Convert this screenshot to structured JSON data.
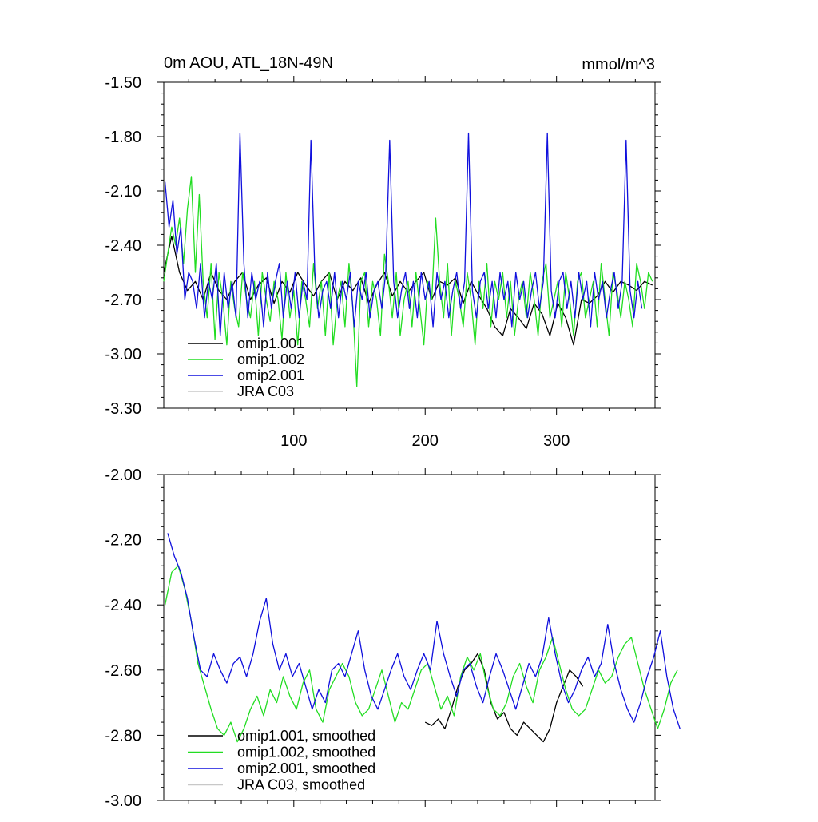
{
  "chart_data": [
    {
      "type": "line",
      "title": "0m AOU, ATL_18N-49N",
      "units": "mmol/m^3",
      "xlabel": "",
      "ylabel": "",
      "xlim": [
        1,
        375
      ],
      "ylim": [
        -3.3,
        -1.5
      ],
      "yticks": [
        "-1.50",
        "-1.80",
        "-2.10",
        "-2.40",
        "-2.70",
        "-3.00",
        "-3.30"
      ],
      "xticks": [
        "100",
        "200",
        "300"
      ],
      "legend_position": "lower-left",
      "legend": [
        "omip1.001",
        "omip1.002",
        "omip2.001",
        "JRA C03"
      ],
      "colors": {
        "omip1.001": "#000000",
        "omip1.002": "#22dd22",
        "omip2.001": "#1010dd",
        "JRA C03": "#c8c8c8"
      },
      "series": [
        {
          "name": "omip1.001",
          "x_start": 1,
          "x_step": 6,
          "values": [
            -2.55,
            -2.35,
            -2.55,
            -2.65,
            -2.6,
            -2.7,
            -2.55,
            -2.65,
            -2.7,
            -2.6,
            -2.55,
            -2.7,
            -2.62,
            -2.58,
            -2.72,
            -2.6,
            -2.66,
            -2.55,
            -2.62,
            -2.68,
            -2.6,
            -2.55,
            -2.7,
            -2.6,
            -2.65,
            -2.58,
            -2.72,
            -2.62,
            -2.55,
            -2.68,
            -2.6,
            -2.66,
            -2.6,
            -2.55,
            -2.7,
            -2.6,
            -2.62,
            -2.58,
            -2.72,
            -2.6,
            -2.68,
            -2.75,
            -2.85,
            -2.9,
            -2.75,
            -2.8,
            -2.86,
            -2.72,
            -2.78,
            -2.9,
            -2.72,
            -2.8,
            -2.95,
            -2.7,
            -2.72,
            -2.68,
            -2.6,
            -2.66,
            -2.6,
            -2.62,
            -2.65,
            -2.6,
            -2.62
          ]
        },
        {
          "name": "omip1.002",
          "x_start": 1,
          "x_step": 3,
          "values": [
            -2.6,
            -2.45,
            -2.3,
            -2.4,
            -2.25,
            -2.5,
            -2.2,
            -2.02,
            -2.55,
            -2.12,
            -2.6,
            -2.8,
            -2.5,
            -2.92,
            -2.55,
            -2.7,
            -2.95,
            -2.6,
            -2.75,
            -2.85,
            -2.55,
            -2.7,
            -2.8,
            -2.6,
            -2.9,
            -2.55,
            -2.7,
            -2.82,
            -2.6,
            -2.7,
            -2.92,
            -2.55,
            -2.8,
            -2.65,
            -2.95,
            -2.6,
            -2.7,
            -2.85,
            -2.5,
            -2.75,
            -2.6,
            -2.9,
            -2.55,
            -2.95,
            -2.7,
            -2.6,
            -2.85,
            -2.5,
            -2.75,
            -3.18,
            -2.6,
            -2.55,
            -2.85,
            -2.6,
            -2.7,
            -2.9,
            -2.45,
            -2.6,
            -2.8,
            -2.55,
            -2.9,
            -2.7,
            -2.6,
            -2.85,
            -2.55,
            -2.75,
            -2.95,
            -2.6,
            -2.7,
            -2.25,
            -2.6,
            -2.8,
            -2.5,
            -2.9,
            -2.6,
            -2.7,
            -2.85,
            -2.55,
            -2.7,
            -2.95,
            -2.6,
            -2.75,
            -2.5,
            -2.85,
            -2.6,
            -2.7,
            -2.55,
            -2.8,
            -2.6,
            -2.9,
            -2.7,
            -2.6,
            -2.8,
            -2.55,
            -2.7,
            -2.9,
            -2.6,
            -2.5,
            -2.8,
            -2.7,
            -2.6,
            -2.85,
            -2.55,
            -2.7,
            -2.9,
            -2.6,
            -2.55,
            -2.8,
            -2.7,
            -2.6,
            -2.85,
            -2.5,
            -2.7,
            -2.9,
            -2.55,
            -2.65,
            -2.8,
            -2.6,
            -2.7,
            -2.85,
            -2.5,
            -2.6,
            -2.75,
            -2.55,
            -2.6
          ]
        },
        {
          "name": "omip2.001",
          "x_start": 2,
          "x_step": 3,
          "values": [
            -2.05,
            -2.3,
            -2.15,
            -2.45,
            -2.3,
            -2.7,
            -2.55,
            -2.6,
            -2.75,
            -2.5,
            -2.8,
            -2.6,
            -2.7,
            -2.5,
            -2.9,
            -2.55,
            -2.75,
            -2.6,
            -2.8,
            -1.78,
            -2.5,
            -2.8,
            -2.55,
            -2.7,
            -2.6,
            -2.85,
            -2.55,
            -2.75,
            -2.6,
            -2.5,
            -2.8,
            -2.6,
            -2.75,
            -2.55,
            -2.8,
            -2.6,
            -2.7,
            -1.82,
            -2.55,
            -2.8,
            -2.65,
            -2.6,
            -2.75,
            -2.55,
            -2.8,
            -2.6,
            -2.7,
            -2.55,
            -2.85,
            -2.6,
            -2.7,
            -2.55,
            -2.8,
            -2.65,
            -2.6,
            -2.75,
            -2.55,
            -1.82,
            -2.6,
            -2.8,
            -2.65,
            -2.55,
            -2.75,
            -2.6,
            -2.8,
            -2.55,
            -2.7,
            -2.6,
            -2.85,
            -2.55,
            -2.7,
            -2.6,
            -2.8,
            -2.65,
            -2.55,
            -2.75,
            -2.6,
            -1.78,
            -2.65,
            -2.8,
            -2.6,
            -2.55,
            -2.75,
            -2.6,
            -2.8,
            -2.55,
            -2.7,
            -2.6,
            -2.85,
            -2.55,
            -2.7,
            -2.6,
            -2.8,
            -2.65,
            -2.55,
            -2.75,
            -2.6,
            -1.78,
            -2.65,
            -2.8,
            -2.6,
            -2.55,
            -2.75,
            -2.6,
            -2.8,
            -2.55,
            -2.7,
            -2.6,
            -2.85,
            -2.55,
            -2.7,
            -2.6,
            -2.8,
            -2.65,
            -2.55,
            -2.75,
            -2.6,
            -1.82,
            -2.65,
            -2.8,
            -2.6,
            -2.75
          ]
        },
        {
          "name": "JRA C03",
          "values": []
        }
      ]
    },
    {
      "type": "line",
      "title": "",
      "xlabel": "",
      "ylabel": "",
      "xlim": [
        1,
        375
      ],
      "ylim": [
        -3.0,
        -2.0
      ],
      "yticks": [
        "-2.00",
        "-2.20",
        "-2.40",
        "-2.60",
        "-2.80",
        "-3.00"
      ],
      "xticks": [],
      "legend_position": "lower-left",
      "legend": [
        "omip1.001, smoothed",
        "omip1.002, smoothed",
        "omip2.001, smoothed",
        "JRA C03, smoothed"
      ],
      "colors": {
        "omip1.001": "#000000",
        "omip1.002": "#22dd22",
        "omip2.001": "#1010dd",
        "JRA C03": "#c8c8c8"
      },
      "series": [
        {
          "name": "omip1.001, smoothed",
          "x_start": 200,
          "x_step": 5,
          "values": [
            -2.76,
            -2.77,
            -2.75,
            -2.78,
            -2.72,
            -2.65,
            -2.6,
            -2.58,
            -2.55,
            -2.6,
            -2.7,
            -2.75,
            -2.73,
            -2.78,
            -2.8,
            -2.76,
            -2.78,
            -2.8,
            -2.82,
            -2.78,
            -2.7,
            -2.65,
            -2.6,
            -2.62,
            -2.65
          ]
        },
        {
          "name": "omip1.002, smoothed",
          "x_start": 2,
          "x_step": 5,
          "values": [
            -2.4,
            -2.3,
            -2.28,
            -2.35,
            -2.45,
            -2.58,
            -2.65,
            -2.72,
            -2.78,
            -2.8,
            -2.76,
            -2.82,
            -2.78,
            -2.72,
            -2.68,
            -2.74,
            -2.66,
            -2.7,
            -2.62,
            -2.68,
            -2.72,
            -2.64,
            -2.6,
            -2.72,
            -2.76,
            -2.66,
            -2.62,
            -2.58,
            -2.62,
            -2.7,
            -2.74,
            -2.72,
            -2.66,
            -2.6,
            -2.68,
            -2.76,
            -2.7,
            -2.72,
            -2.66,
            -2.6,
            -2.58,
            -2.65,
            -2.72,
            -2.68,
            -2.74,
            -2.62,
            -2.56,
            -2.6,
            -2.55,
            -2.65,
            -2.72,
            -2.74,
            -2.7,
            -2.62,
            -2.58,
            -2.65,
            -2.7,
            -2.6,
            -2.56,
            -2.5,
            -2.58,
            -2.66,
            -2.72,
            -2.74,
            -2.72,
            -2.66,
            -2.6,
            -2.64,
            -2.62,
            -2.56,
            -2.52,
            -2.5,
            -2.58,
            -2.66,
            -2.72,
            -2.78,
            -2.72,
            -2.64,
            -2.6
          ]
        },
        {
          "name": "omip2.001, smoothed",
          "x_start": 4,
          "x_step": 5,
          "values": [
            -2.18,
            -2.25,
            -2.3,
            -2.38,
            -2.5,
            -2.6,
            -2.62,
            -2.55,
            -2.6,
            -2.64,
            -2.58,
            -2.56,
            -2.62,
            -2.55,
            -2.45,
            -2.38,
            -2.52,
            -2.6,
            -2.55,
            -2.62,
            -2.58,
            -2.65,
            -2.72,
            -2.66,
            -2.7,
            -2.6,
            -2.58,
            -2.62,
            -2.55,
            -2.48,
            -2.6,
            -2.68,
            -2.72,
            -2.66,
            -2.6,
            -2.55,
            -2.62,
            -2.66,
            -2.6,
            -2.55,
            -2.6,
            -2.45,
            -2.55,
            -2.62,
            -2.68,
            -2.6,
            -2.58,
            -2.65,
            -2.7,
            -2.62,
            -2.55,
            -2.6,
            -2.66,
            -2.72,
            -2.65,
            -2.58,
            -2.62,
            -2.56,
            -2.44,
            -2.55,
            -2.64,
            -2.7,
            -2.66,
            -2.6,
            -2.56,
            -2.62,
            -2.58,
            -2.46,
            -2.58,
            -2.66,
            -2.72,
            -2.76,
            -2.7,
            -2.62,
            -2.56,
            -2.48,
            -2.62,
            -2.72,
            -2.78
          ]
        },
        {
          "name": "JRA C03, smoothed",
          "values": []
        }
      ]
    }
  ]
}
